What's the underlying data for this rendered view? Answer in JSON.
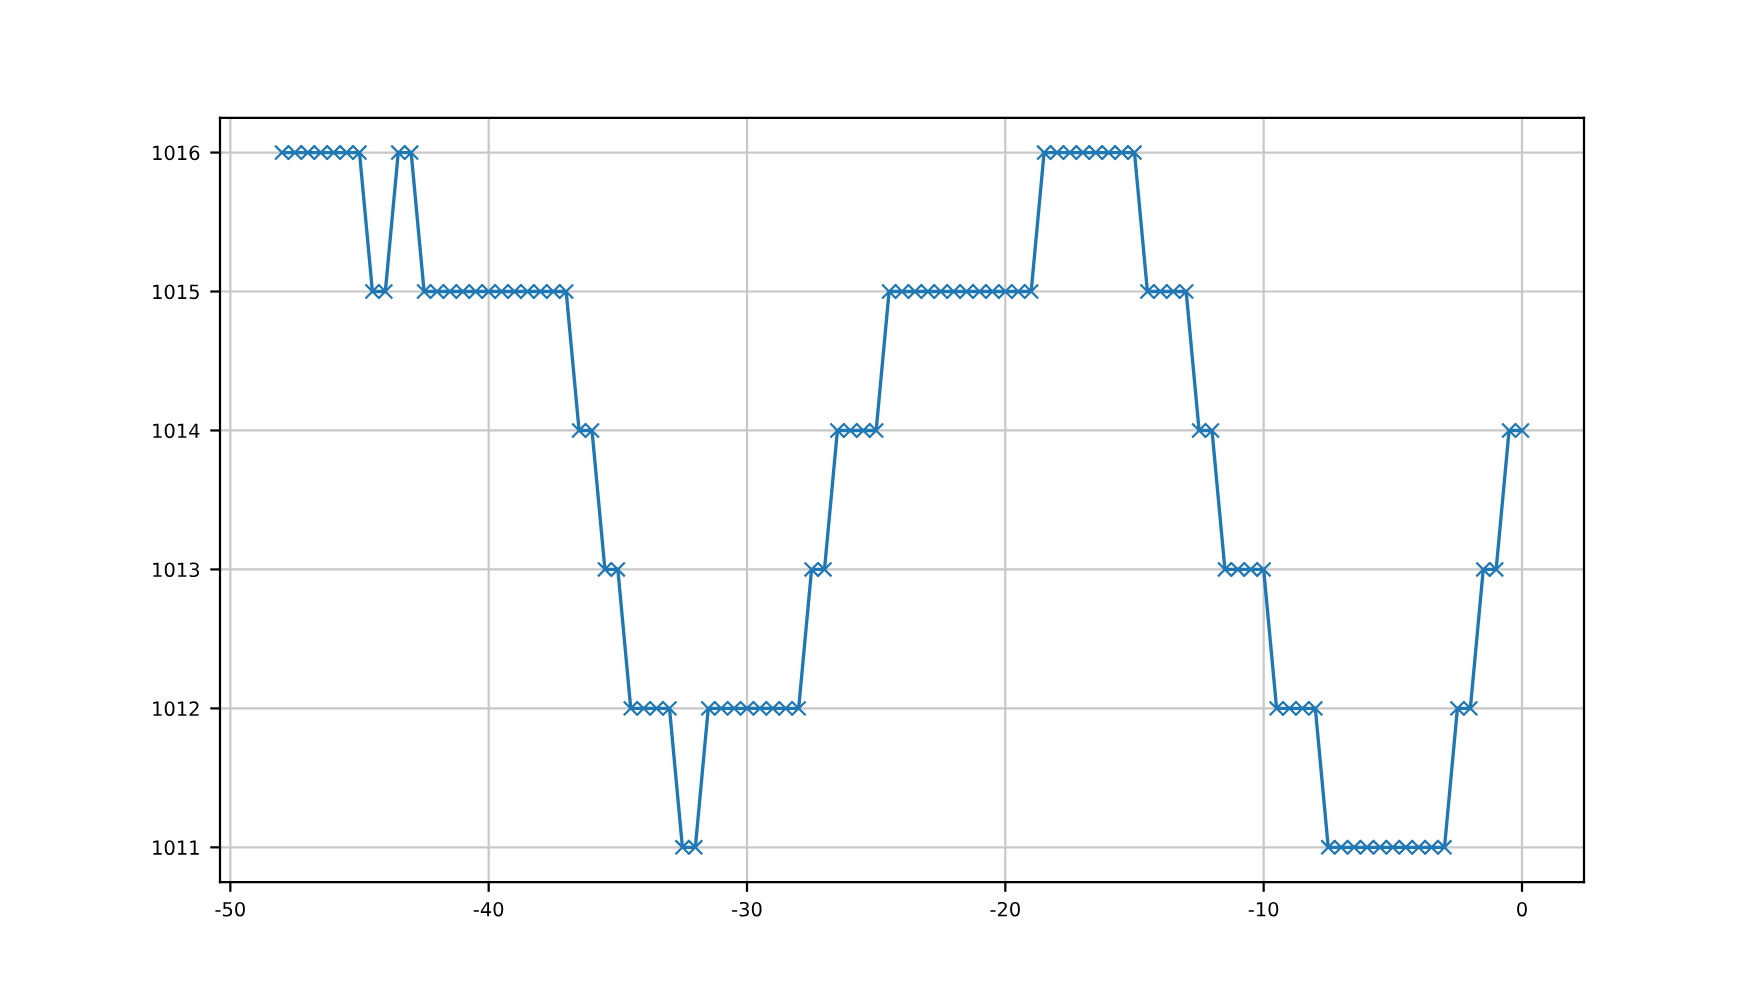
{
  "chart_data": {
    "type": "line",
    "marker": "cross",
    "grid": true,
    "x": [
      -48,
      -47.5,
      -47,
      -46.5,
      -46,
      -45.5,
      -45,
      -44.5,
      -44,
      -43.5,
      -43,
      -42.5,
      -42,
      -41.5,
      -41,
      -40.5,
      -40,
      -39.5,
      -39,
      -38.5,
      -38,
      -37.5,
      -37,
      -36.5,
      -36,
      -35.5,
      -35,
      -34.5,
      -34,
      -33.5,
      -33,
      -32.5,
      -32,
      -31.5,
      -31,
      -30.5,
      -30,
      -29.5,
      -29,
      -28.5,
      -28,
      -27.5,
      -27,
      -26.5,
      -26,
      -25.5,
      -25,
      -24.5,
      -24,
      -23.5,
      -23,
      -22.5,
      -22,
      -21.5,
      -21,
      -20.5,
      -20,
      -19.5,
      -19,
      -18.5,
      -18,
      -17.5,
      -17,
      -16.5,
      -16,
      -15.5,
      -15,
      -14.5,
      -14,
      -13.5,
      -13,
      -12.5,
      -12,
      -11.5,
      -11,
      -10.5,
      -10,
      -9.5,
      -9,
      -8.5,
      -8,
      -7.5,
      -7,
      -6.5,
      -6,
      -5.5,
      -5,
      -4.5,
      -4,
      -3.5,
      -3,
      -2.5,
      -2,
      -1.5,
      -1,
      -0.5,
      0
    ],
    "series": [
      {
        "color": "#1f77b4",
        "values": [
          1016,
          1016,
          1016,
          1016,
          1016,
          1016,
          1016,
          1015,
          1015,
          1016,
          1016,
          1015,
          1015,
          1015,
          1015,
          1015,
          1015,
          1015,
          1015,
          1015,
          1015,
          1015,
          1015,
          1014,
          1014,
          1013,
          1013,
          1012,
          1012,
          1012,
          1012,
          1011,
          1011,
          1012,
          1012,
          1012,
          1012,
          1012,
          1012,
          1012,
          1012,
          1013,
          1013,
          1014,
          1014,
          1014,
          1014,
          1015,
          1015,
          1015,
          1015,
          1015,
          1015,
          1015,
          1015,
          1015,
          1015,
          1015,
          1015,
          1016,
          1016,
          1016,
          1016,
          1016,
          1016,
          1016,
          1016,
          1015,
          1015,
          1015,
          1015,
          1014,
          1014,
          1013,
          1013,
          1013,
          1013,
          1012,
          1012,
          1012,
          1012,
          1011,
          1011,
          1011,
          1011,
          1011,
          1011,
          1011,
          1011,
          1011,
          1011,
          1012,
          1012,
          1013,
          1013,
          1014,
          1014
        ]
      }
    ],
    "xlim": [
      -50.4,
      2.4
    ],
    "xticks": [
      -50,
      -40,
      -30,
      -20,
      -10,
      0
    ],
    "ylim": [
      1010.75,
      1016.25
    ],
    "yticks": [
      1011,
      1012,
      1013,
      1014,
      1015,
      1016
    ]
  }
}
